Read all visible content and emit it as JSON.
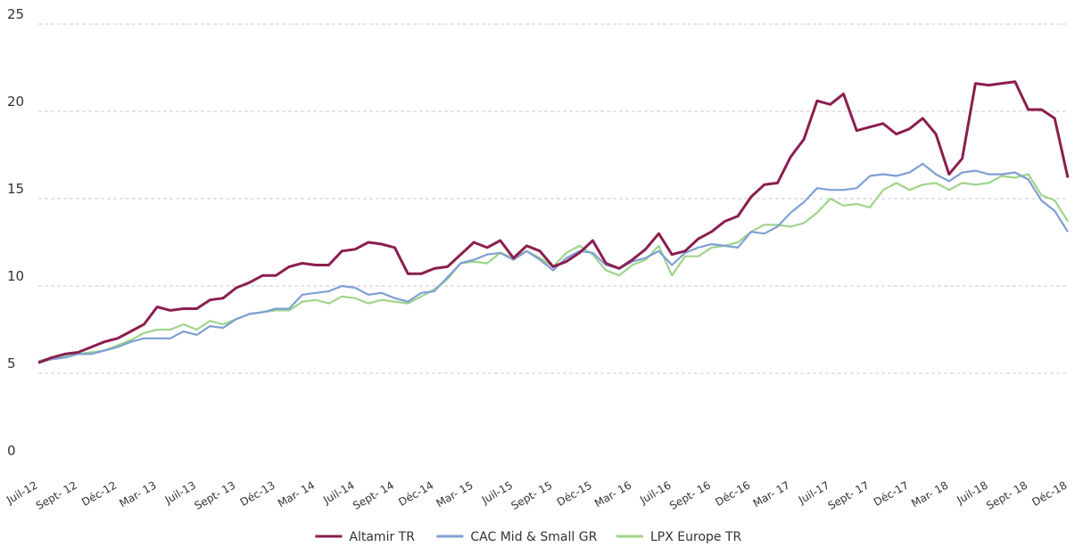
{
  "chart_data": {
    "type": "line",
    "categories": [
      "Juil-12",
      null,
      null,
      "Sept- 12",
      null,
      null,
      "Déc-12",
      null,
      null,
      "Mar- 13",
      null,
      null,
      "Juil-13",
      null,
      null,
      "Sept- 13",
      null,
      null,
      "Déc-13",
      null,
      null,
      "Mar- 14",
      null,
      null,
      "Juil-14",
      null,
      null,
      "Sept- 14",
      null,
      null,
      "Déc-14",
      null,
      null,
      "Mar- 15",
      null,
      null,
      "Juil-15",
      null,
      null,
      "Sept- 15",
      null,
      null,
      "Déc-15",
      null,
      null,
      "Mar- 16",
      null,
      null,
      "Juil-16",
      null,
      null,
      "Sept- 16",
      null,
      null,
      "Déc-16",
      null,
      null,
      "Mar- 17",
      null,
      null,
      "Juil-17",
      null,
      null,
      "Sept- 17",
      null,
      null,
      "Déc-17",
      null,
      null,
      "Mar- 18",
      null,
      null,
      "Juil-18",
      null,
      null,
      "Sept- 18",
      null,
      null,
      "Déc-18"
    ],
    "series": [
      {
        "name": "Altamir TR",
        "color": "#8b1e4f",
        "values": [
          5.6,
          5.9,
          6.1,
          6.2,
          6.5,
          6.8,
          7.0,
          7.4,
          7.8,
          8.8,
          8.6,
          8.7,
          8.7,
          9.2,
          9.3,
          9.9,
          10.2,
          10.6,
          10.6,
          11.1,
          11.3,
          11.2,
          11.2,
          12.0,
          12.1,
          12.5,
          12.4,
          12.2,
          10.7,
          10.7,
          11.0,
          11.1,
          11.8,
          12.5,
          12.2,
          12.6,
          11.6,
          12.3,
          12.0,
          11.1,
          11.4,
          11.9,
          12.6,
          11.3,
          11.0,
          11.5,
          12.1,
          13.0,
          11.8,
          12.0,
          12.7,
          13.1,
          13.7,
          14.0,
          15.1,
          15.8,
          15.9,
          17.4,
          18.4,
          20.6,
          20.4,
          21.0,
          18.9,
          19.1,
          19.3,
          18.7,
          19.0,
          19.6,
          18.7,
          16.4,
          17.3,
          21.6,
          21.5,
          21.6,
          21.7,
          20.1,
          20.1,
          19.6,
          16.2
        ]
      },
      {
        "name": "CAC Mid & Small GR",
        "color": "#7f9fd4",
        "values": [
          5.6,
          5.8,
          5.9,
          6.1,
          6.1,
          6.3,
          6.5,
          6.8,
          7.0,
          7.0,
          7.0,
          7.4,
          7.2,
          7.7,
          7.6,
          8.1,
          8.4,
          8.5,
          8.7,
          8.7,
          9.5,
          9.6,
          9.7,
          10.0,
          9.9,
          9.5,
          9.6,
          9.3,
          9.1,
          9.6,
          9.7,
          10.5,
          11.3,
          11.5,
          11.8,
          11.9,
          11.5,
          12.0,
          11.5,
          10.9,
          11.6,
          12.0,
          11.9,
          11.2,
          11.0,
          11.4,
          11.6,
          12.0,
          11.2,
          11.9,
          12.2,
          12.4,
          12.3,
          12.2,
          13.1,
          13.0,
          13.4,
          14.2,
          14.8,
          15.6,
          15.5,
          15.5,
          15.6,
          16.3,
          16.4,
          16.3,
          16.5,
          17.0,
          16.4,
          16.0,
          16.5,
          16.6,
          16.4,
          16.4,
          16.5,
          16.1,
          14.9,
          14.3,
          13.1
        ]
      },
      {
        "name": "LPX Europe TR",
        "color": "#9fd48c",
        "values": [
          5.7,
          5.9,
          6.0,
          6.1,
          6.2,
          6.3,
          6.6,
          6.9,
          7.3,
          7.5,
          7.5,
          7.8,
          7.5,
          8.0,
          7.8,
          8.1,
          8.4,
          8.5,
          8.6,
          8.6,
          9.1,
          9.2,
          9.0,
          9.4,
          9.3,
          9.0,
          9.2,
          9.1,
          9.0,
          9.4,
          9.8,
          10.4,
          11.3,
          11.4,
          11.3,
          11.9,
          11.6,
          12.0,
          11.6,
          11.1,
          11.9,
          12.3,
          11.8,
          10.9,
          10.6,
          11.2,
          11.5,
          12.3,
          10.6,
          11.7,
          11.7,
          12.2,
          12.3,
          12.5,
          13.1,
          13.5,
          13.5,
          13.4,
          13.6,
          14.2,
          15.0,
          14.6,
          14.7,
          14.5,
          15.5,
          15.9,
          15.5,
          15.8,
          15.9,
          15.5,
          15.9,
          15.8,
          15.9,
          16.3,
          16.2,
          16.4,
          15.2,
          14.9,
          13.7
        ]
      }
    ],
    "ylim": [
      0,
      25
    ],
    "yticks": [
      0,
      5,
      10,
      15,
      20,
      25
    ],
    "grid": true,
    "legend": "bottom"
  }
}
